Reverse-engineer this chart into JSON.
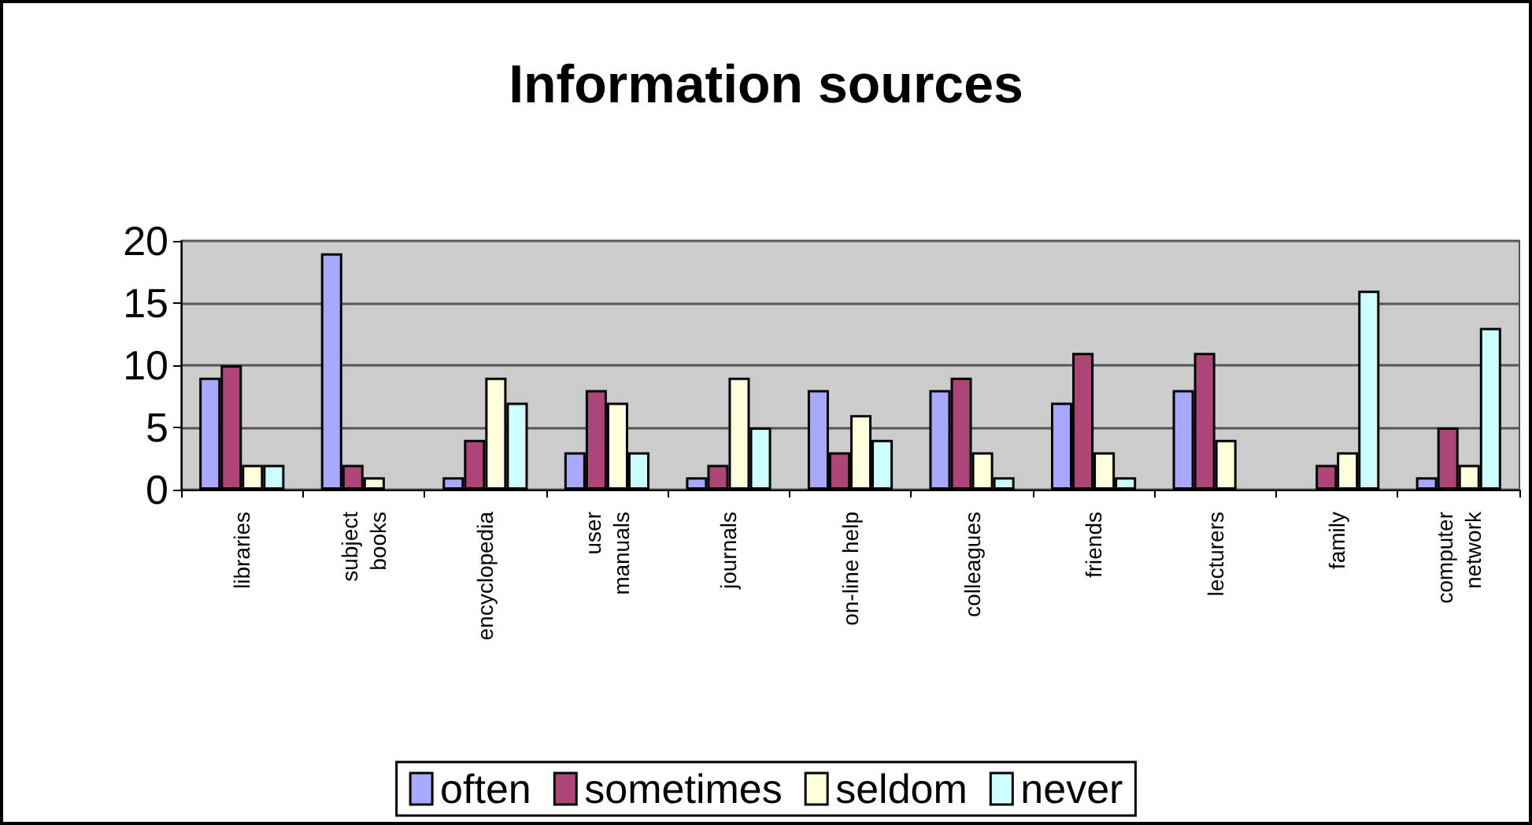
{
  "chart_data": {
    "type": "bar",
    "title": "Information sources",
    "categories": [
      "libraries",
      "subject\nbooks",
      "encyclopedia",
      "user\nmanuals",
      "journals",
      "on-line help",
      "colleagues",
      "friends",
      "lecturers",
      "family",
      "computer\nnetwork"
    ],
    "series": [
      {
        "name": "often",
        "color": "#a8a8ff",
        "values": [
          9,
          19,
          1,
          3,
          1,
          8,
          8,
          7,
          8,
          null,
          1
        ]
      },
      {
        "name": "sometimes",
        "color": "#ad4576",
        "values": [
          10,
          2,
          4,
          8,
          2,
          3,
          9,
          11,
          11,
          2,
          5
        ]
      },
      {
        "name": "seldom",
        "color": "#ffffdb",
        "values": [
          2,
          1,
          9,
          7,
          9,
          6,
          3,
          3,
          4,
          3,
          2
        ]
      },
      {
        "name": "never",
        "color": "#ccffff",
        "values": [
          2,
          null,
          7,
          3,
          5,
          4,
          1,
          1,
          null,
          16,
          13
        ]
      }
    ],
    "ylim": [
      0,
      20
    ],
    "yticks": [
      0,
      5,
      10,
      15,
      20
    ],
    "grid": "y",
    "legend": "bottom"
  }
}
